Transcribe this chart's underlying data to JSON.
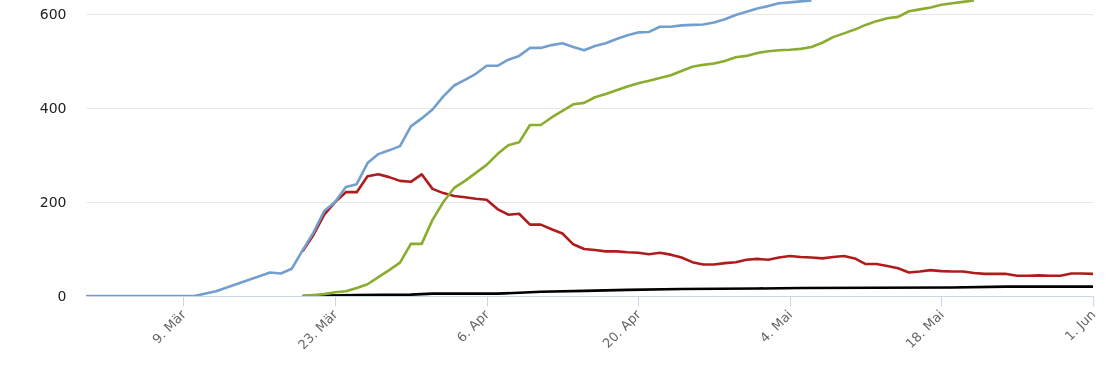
{
  "chart_data": {
    "type": "line",
    "xlim": [
      "--02-29",
      "--06-01"
    ],
    "xticks": [
      {
        "value": "--03-09",
        "label": "9. Mär"
      },
      {
        "value": "--03-23",
        "label": "23. Mär"
      },
      {
        "value": "--04-06",
        "label": "6. Apr"
      },
      {
        "value": "--04-20",
        "label": "20. Apr"
      },
      {
        "value": "--05-04",
        "label": "4. Mai"
      },
      {
        "value": "--05-18",
        "label": "18. Mai"
      },
      {
        "value": "--06-01",
        "label": "1. Jun"
      }
    ],
    "ylim": [
      0,
      630
    ],
    "yticks": [
      0,
      200,
      400,
      600
    ],
    "grid": "y",
    "series": [
      {
        "color": "#739fcf",
        "x": [
          "--02-29",
          "--03-10",
          "--03-12",
          "--03-17",
          "--03-18",
          "--03-19",
          "--03-20",
          "--03-21",
          "--03-22",
          "--03-23",
          "--03-24",
          "--03-25",
          "--03-26",
          "--03-27",
          "--03-28",
          "--03-29",
          "--03-30",
          "--03-31",
          "--04-01",
          "--04-02",
          "--04-03",
          "--04-04",
          "--04-05",
          "--04-06",
          "--04-07",
          "--04-08",
          "--04-09",
          "--04-10",
          "--04-11",
          "--04-12",
          "--04-13",
          "--04-14",
          "--04-15",
          "--04-16",
          "--04-17",
          "--04-18",
          "--04-19",
          "--04-20",
          "--04-21",
          "--04-22",
          "--04-23",
          "--04-24",
          "--04-25",
          "--04-26",
          "--04-27",
          "--04-28",
          "--04-29",
          "--04-30",
          "--05-01",
          "--05-02",
          "--05-03",
          "--05-04",
          "--05-05",
          "--05-06"
        ],
        "values": [
          0,
          0,
          10,
          50,
          48,
          58,
          97,
          135,
          181,
          200,
          232,
          238,
          283,
          302,
          310,
          319,
          361,
          378,
          397,
          425,
          448,
          460,
          473,
          490,
          490,
          503,
          511,
          528,
          528,
          534,
          538,
          530,
          523,
          532,
          538,
          547,
          555,
          561,
          562,
          573,
          573,
          576,
          577,
          578,
          582,
          589,
          598,
          605,
          612,
          617,
          623,
          625,
          627,
          629
        ]
      },
      {
        "color": "#8aac2f",
        "x": [
          "--03-20",
          "--03-21",
          "--03-22",
          "--03-23",
          "--03-24",
          "--03-25",
          "--03-26",
          "--03-27",
          "--03-28",
          "--03-29",
          "--03-30",
          "--03-31",
          "--04-01",
          "--04-02",
          "--04-03",
          "--04-04",
          "--04-05",
          "--04-06",
          "--04-07",
          "--04-08",
          "--04-09",
          "--04-10",
          "--04-11",
          "--04-12",
          "--04-13",
          "--04-14",
          "--04-15",
          "--04-16",
          "--04-17",
          "--04-18",
          "--04-19",
          "--04-20",
          "--04-21",
          "--04-22",
          "--04-23",
          "--04-24",
          "--04-25",
          "--04-26",
          "--04-27",
          "--04-28",
          "--04-29",
          "--04-30",
          "--05-01",
          "--05-02",
          "--05-03",
          "--05-04",
          "--05-05",
          "--05-06",
          "--05-07",
          "--05-08",
          "--05-09",
          "--05-10",
          "--05-11",
          "--05-12",
          "--05-13",
          "--05-14",
          "--05-15",
          "--05-16",
          "--05-17",
          "--05-18",
          "--05-19",
          "--05-20",
          "--05-21"
        ],
        "values": [
          0,
          2,
          4,
          8,
          10,
          17,
          25,
          40,
          55,
          71,
          111,
          111,
          162,
          200,
          230,
          245,
          262,
          279,
          302,
          321,
          327,
          364,
          364,
          380,
          394,
          408,
          411,
          423,
          430,
          438,
          446,
          453,
          458,
          464,
          470,
          479,
          488,
          492,
          495,
          500,
          508,
          511,
          517,
          521,
          523,
          524,
          526,
          530,
          539,
          551,
          559,
          567,
          577,
          585,
          591,
          594,
          606,
          610,
          614,
          620,
          623,
          626,
          629
        ]
      },
      {
        "color": "#b01c1c",
        "x": [
          "--03-20",
          "--03-21",
          "--03-22",
          "--03-23",
          "--03-24",
          "--03-25",
          "--03-26",
          "--03-27",
          "--03-28",
          "--03-29",
          "--03-30",
          "--03-31",
          "--04-01",
          "--04-02",
          "--04-03",
          "--04-04",
          "--04-05",
          "--04-06",
          "--04-07",
          "--04-08",
          "--04-09",
          "--04-10",
          "--04-11",
          "--04-12",
          "--04-13",
          "--04-14",
          "--04-15",
          "--04-16",
          "--04-17",
          "--04-18",
          "--04-19",
          "--04-20",
          "--04-21",
          "--04-22",
          "--04-23",
          "--04-24",
          "--04-25",
          "--04-26",
          "--04-27",
          "--04-28",
          "--04-29",
          "--04-30",
          "--05-01",
          "--05-02",
          "--05-03",
          "--05-04",
          "--05-05",
          "--05-06",
          "--05-07",
          "--05-08",
          "--05-09",
          "--05-10",
          "--05-11",
          "--05-12",
          "--05-13",
          "--05-14",
          "--05-15",
          "--05-16",
          "--05-17",
          "--05-18",
          "--05-19",
          "--05-20",
          "--05-21",
          "--05-22",
          "--05-23",
          "--05-24",
          "--05-25",
          "--05-26",
          "--05-27",
          "--05-28",
          "--05-29",
          "--05-30",
          "--05-31",
          "--06-01"
        ],
        "values": [
          95,
          130,
          173,
          200,
          221,
          221,
          255,
          259,
          253,
          245,
          243,
          259,
          228,
          219,
          213,
          210,
          207,
          205,
          185,
          173,
          175,
          152,
          152,
          142,
          133,
          110,
          100,
          98,
          95,
          95,
          93,
          92,
          89,
          92,
          88,
          82,
          72,
          67,
          67,
          70,
          72,
          77,
          79,
          77,
          82,
          85,
          83,
          82,
          80,
          83,
          85,
          80,
          68,
          68,
          64,
          59,
          50,
          52,
          55,
          53,
          52,
          52,
          49,
          47,
          47,
          47,
          43,
          43,
          44,
          43,
          43,
          48,
          48,
          47
        ]
      },
      {
        "color": "#000000",
        "x": [
          "--03-20",
          "--03-25",
          "--03-30",
          "--04-01",
          "--04-07",
          "--04-09",
          "--04-11",
          "--04-15",
          "--04-19",
          "--04-24",
          "--05-01",
          "--05-05",
          "--05-19",
          "--05-24",
          "--06-01"
        ],
        "values": [
          0,
          2,
          3,
          5,
          5,
          7,
          9,
          11,
          13,
          15,
          16,
          17,
          18,
          20,
          20
        ]
      }
    ]
  }
}
